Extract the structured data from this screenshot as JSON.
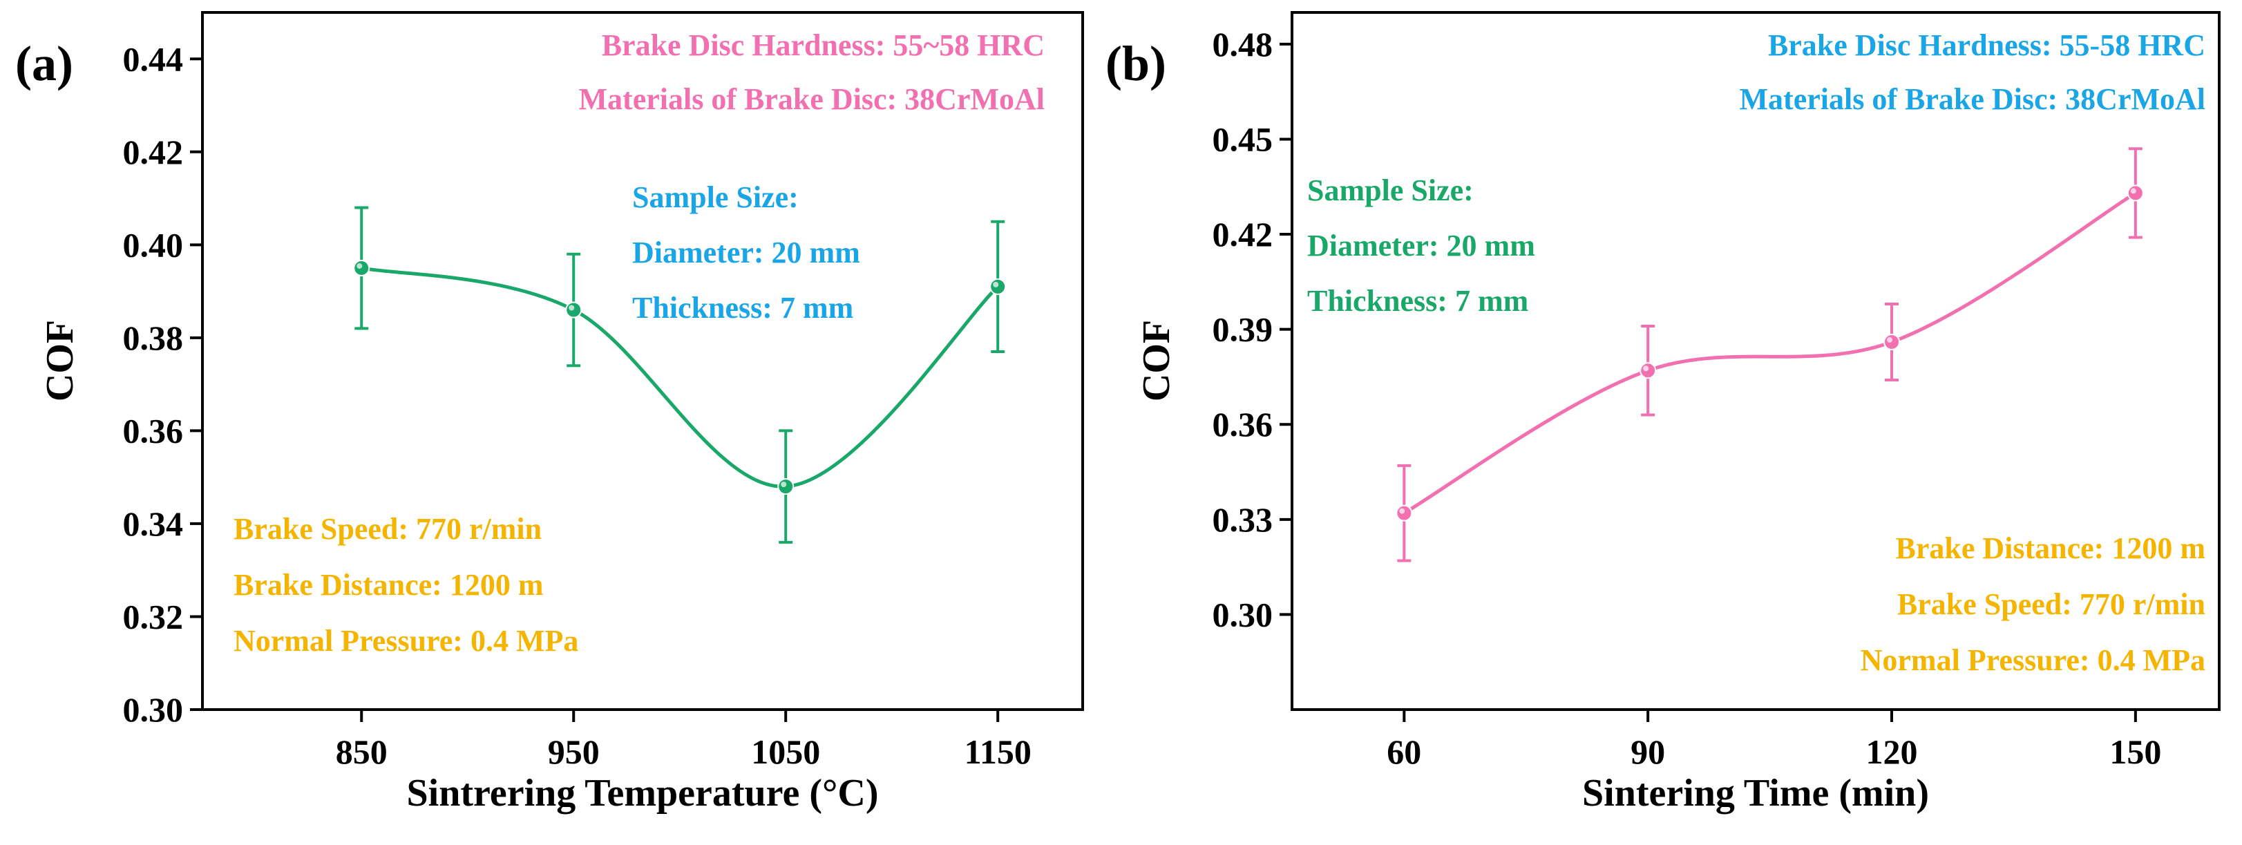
{
  "chart_data": [
    {
      "type": "line",
      "panel_label": "(a)",
      "xlabel": "Sintrering Temperature (°C)",
      "ylabel": "COF",
      "categories": [
        "850",
        "950",
        "1050",
        "1150"
      ],
      "x": [
        850,
        950,
        1050,
        1150
      ],
      "xlim": [
        775,
        1190
      ],
      "ylim": [
        0.3,
        0.45
      ],
      "yticks": [
        0.3,
        0.32,
        0.34,
        0.36,
        0.38,
        0.4,
        0.42,
        0.44
      ],
      "ytick_labels": [
        "0.30",
        "0.32",
        "0.34",
        "0.36",
        "0.38",
        "0.40",
        "0.42",
        "0.44"
      ],
      "series": [
        {
          "values": [
            0.395,
            0.386,
            0.348,
            0.391
          ],
          "error": [
            0.013,
            0.012,
            0.012,
            0.014
          ],
          "color": "#1aa76a",
          "smooth": true
        }
      ],
      "grid": false,
      "annotations": [
        {
          "lines": [
            "Brake Disc Hardness: 55~58 HRC",
            "Materials of Brake Disc: 38CrMoAl"
          ],
          "color": "#f26fb0",
          "position": "top-right"
        },
        {
          "lines": [
            "Sample Size:",
            "Diameter: 20 mm",
            "Thickness: 7 mm"
          ],
          "color": "#1aa5e6",
          "position": "upper-right"
        },
        {
          "lines": [
            "Brake Speed: 770 r/min",
            "Brake Distance: 1200 m",
            "Normal Pressure: 0.4 MPa"
          ],
          "color": "#f5b400",
          "position": "bottom-left"
        }
      ]
    },
    {
      "type": "line",
      "panel_label": "(b)",
      "xlabel": "Sintering Time (min)",
      "ylabel": "COF",
      "categories": [
        "60",
        "90",
        "120",
        "150"
      ],
      "x": [
        60,
        90,
        120,
        150
      ],
      "xlim": [
        46.2,
        160.3
      ],
      "ylim": [
        0.27,
        0.49
      ],
      "yticks": [
        0.3,
        0.33,
        0.36,
        0.39,
        0.42,
        0.45,
        0.48
      ],
      "ytick_labels": [
        "0.30",
        "0.33",
        "0.36",
        "0.39",
        "0.42",
        "0.45",
        "0.48"
      ],
      "series": [
        {
          "values": [
            0.332,
            0.377,
            0.386,
            0.433
          ],
          "error": [
            0.015,
            0.014,
            0.012,
            0.014
          ],
          "color": "#f26fb0",
          "smooth": true
        }
      ],
      "grid": false,
      "annotations": [
        {
          "lines": [
            "Brake Disc Hardness: 55-58 HRC",
            "Materials of Brake Disc: 38CrMoAl"
          ],
          "color": "#1aa5e6",
          "position": "top-right"
        },
        {
          "lines": [
            "Sample Size:",
            "Diameter: 20 mm",
            "Thickness: 7 mm"
          ],
          "color": "#1aa76a",
          "position": "upper-left"
        },
        {
          "lines": [
            "Brake Distance: 1200 m",
            "Brake Speed: 770 r/min",
            "Normal Pressure: 0.4 MPa"
          ],
          "color": "#f5b400",
          "position": "bottom-right"
        }
      ]
    }
  ]
}
